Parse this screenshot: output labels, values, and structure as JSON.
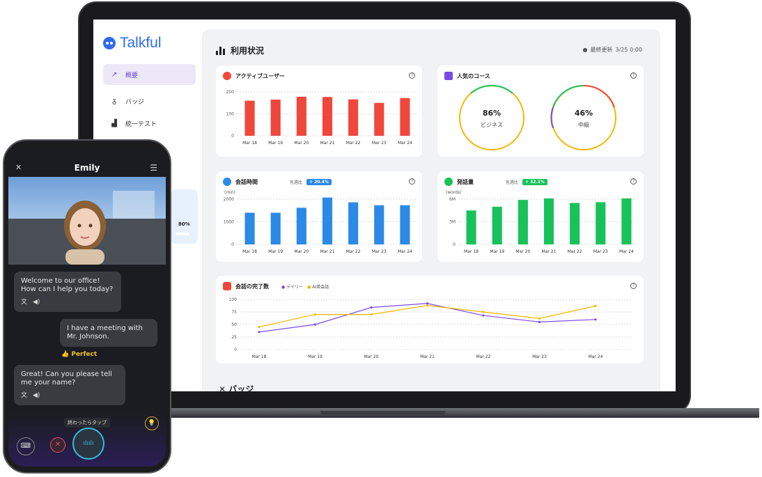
{
  "app": {
    "name": "Talkful"
  },
  "sidebar": {
    "items": [
      {
        "label": "概要",
        "icon": "line-chart-icon",
        "active": true
      },
      {
        "label": "バッジ",
        "icon": "medal-icon",
        "active": false
      },
      {
        "label": "統一テスト",
        "icon": "podium-icon",
        "active": false
      }
    ],
    "card_value": "80%"
  },
  "main": {
    "title": "利用状況",
    "updated_label": "最終更新",
    "updated_value": "3/25 0:00",
    "next_section": "バッジ"
  },
  "cards": {
    "active_users": {
      "title": "アクティブユーザー"
    },
    "popular_courses": {
      "title": "人気のコース",
      "rings": [
        {
          "value": "86%",
          "label": "ビジネス"
        },
        {
          "value": "46%",
          "label": "中級"
        }
      ]
    },
    "talk_time": {
      "title": "会話時間",
      "compare_label": "先週比",
      "badge": "+ 20.4%",
      "unit": "(min)"
    },
    "speech_volume": {
      "title": "発話量",
      "compare_label": "先週比",
      "badge": "+ 32.1%",
      "unit": "(words)"
    },
    "completions": {
      "title": "会話の完了数",
      "legend": [
        "デイリー",
        "AI英会話"
      ]
    }
  },
  "chart_data": [
    {
      "type": "bar",
      "title": "アクティブユーザー",
      "categories": [
        "Mar 18",
        "Mar 19",
        "Mar 20",
        "Mar 21",
        "Mar 22",
        "Mar 23",
        "Mar 24"
      ],
      "values": [
        160,
        165,
        178,
        177,
        166,
        150,
        172
      ],
      "ylim": [
        0,
        200
      ],
      "yticks": [
        "0",
        "100",
        "200"
      ],
      "color": "#f0473c"
    },
    {
      "type": "bar",
      "title": "会話時間",
      "categories": [
        "Mar 18",
        "Mar 19",
        "Mar 20",
        "Mar 21",
        "Mar 22",
        "Mar 23",
        "Mar 24"
      ],
      "values": [
        1400,
        1400,
        1620,
        2070,
        1860,
        1730,
        1730
      ],
      "ylim": [
        0,
        2000
      ],
      "yticks": [
        "0",
        "1000",
        "2000"
      ],
      "ylabel": "(min)",
      "color": "#2b8ae6"
    },
    {
      "type": "bar",
      "title": "発話量",
      "categories": [
        "Mar 18",
        "Mar 19",
        "Mar 20",
        "Mar 21",
        "Mar 22",
        "Mar 23",
        "Mar 24"
      ],
      "values": [
        4500000,
        5000000,
        5900000,
        6100000,
        5500000,
        5600000,
        6100000
      ],
      "ylim": [
        0,
        6000000
      ],
      "yticks": [
        "0",
        "3M",
        "6M"
      ],
      "ylabel": "(words)",
      "color": "#18c25a"
    },
    {
      "type": "line",
      "title": "会話の完了数",
      "categories": [
        "Mar 18",
        "Mar 19",
        "Mar 20",
        "Mar 21",
        "Mar 22",
        "Mar 23",
        "Mar 24"
      ],
      "ylim": [
        0,
        100
      ],
      "yticks": [
        "0",
        "25",
        "50",
        "75",
        "100"
      ],
      "series": [
        {
          "name": "デイリー",
          "color": "#7b4ae6",
          "values": [
            35,
            50,
            84,
            92,
            68,
            55,
            60
          ]
        },
        {
          "name": "AI英会話",
          "color": "#f5b800",
          "values": [
            45,
            70,
            70,
            88,
            75,
            62,
            87
          ]
        }
      ]
    }
  ],
  "phone": {
    "contact": "Emily",
    "messages": [
      {
        "from": "ai",
        "text": "Welcome to our office! How can I help you today?"
      },
      {
        "from": "user",
        "text": "I have a meeting with Mr. Johnson."
      },
      {
        "from": "ai",
        "text": "Great! Can you please tell me your name?"
      }
    ],
    "feedback": "Perfect",
    "tap_label": "終わったらタップ"
  }
}
